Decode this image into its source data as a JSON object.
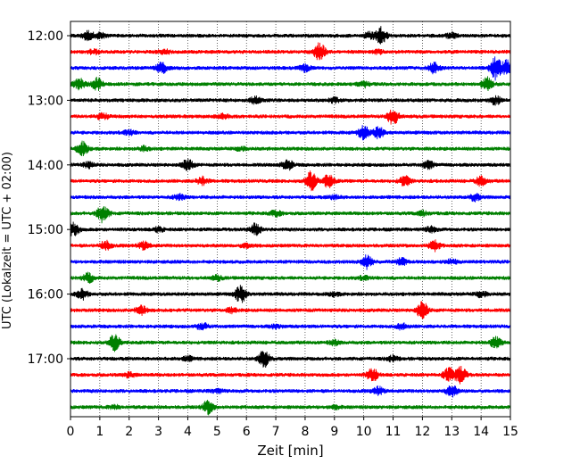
{
  "chart_data": {
    "type": "line",
    "title": "",
    "xlabel": "Zeit  [min]",
    "ylabel": "UTC (Lokalzeit = UTC + 02:00)",
    "xlim": [
      0,
      15
    ],
    "x_ticks": [
      0,
      1,
      2,
      3,
      4,
      5,
      6,
      7,
      8,
      9,
      10,
      11,
      12,
      13,
      14,
      15
    ],
    "y_tick_labels": [
      "12:00",
      "13:00",
      "14:00",
      "15:00",
      "16:00",
      "17:00"
    ],
    "grid": "vertical dotted at each minute",
    "line_colors": [
      "#000000",
      "#ff0000",
      "#0000ff",
      "#008000"
    ],
    "traces": [
      {
        "start": "12:00",
        "color": "#000000",
        "events": [
          [
            0.6,
            0.8
          ],
          [
            1.0,
            0.5
          ],
          [
            10.6,
            1.6
          ],
          [
            10.2,
            0.6
          ],
          [
            13.0,
            0.5
          ]
        ]
      },
      {
        "start": "12:15",
        "color": "#ff0000",
        "events": [
          [
            0.8,
            0.4
          ],
          [
            8.5,
            1.6
          ],
          [
            3.2,
            0.4
          ],
          [
            10.5,
            0.3
          ]
        ]
      },
      {
        "start": "12:30",
        "color": "#0000ff",
        "events": [
          [
            3.1,
            0.9
          ],
          [
            8.0,
            0.6
          ],
          [
            12.4,
            0.9
          ],
          [
            14.5,
            2.0
          ],
          [
            14.9,
            1.4
          ]
        ]
      },
      {
        "start": "12:45",
        "color": "#008000",
        "events": [
          [
            0.3,
            1.0
          ],
          [
            0.9,
            1.1
          ],
          [
            10.0,
            0.5
          ],
          [
            14.2,
            1.2
          ]
        ]
      },
      {
        "start": "13:00",
        "color": "#000000",
        "events": [
          [
            6.3,
            0.6
          ],
          [
            9.0,
            0.4
          ],
          [
            14.5,
            0.7
          ]
        ]
      },
      {
        "start": "13:15",
        "color": "#ff0000",
        "events": [
          [
            1.1,
            0.6
          ],
          [
            5.2,
            0.4
          ],
          [
            11.0,
            1.5
          ]
        ]
      },
      {
        "start": "13:30",
        "color": "#0000ff",
        "events": [
          [
            10.0,
            1.2
          ],
          [
            10.5,
            1.0
          ],
          [
            2.0,
            0.4
          ]
        ]
      },
      {
        "start": "13:45",
        "color": "#008000",
        "events": [
          [
            0.4,
            1.2
          ],
          [
            2.5,
            0.4
          ],
          [
            5.8,
            0.3
          ]
        ]
      },
      {
        "start": "14:00",
        "color": "#000000",
        "events": [
          [
            4.0,
            1.0
          ],
          [
            7.4,
            0.9
          ],
          [
            12.2,
            0.7
          ],
          [
            0.6,
            0.5
          ]
        ]
      },
      {
        "start": "14:15",
        "color": "#ff0000",
        "events": [
          [
            4.5,
            0.7
          ],
          [
            8.2,
            1.7
          ],
          [
            8.8,
            1.2
          ],
          [
            11.4,
            0.9
          ],
          [
            14.0,
            0.8
          ]
        ]
      },
      {
        "start": "14:30",
        "color": "#0000ff",
        "events": [
          [
            3.7,
            0.5
          ],
          [
            13.8,
            0.6
          ],
          [
            9.0,
            0.3
          ]
        ]
      },
      {
        "start": "14:45",
        "color": "#008000",
        "events": [
          [
            1.1,
            1.6
          ],
          [
            7.0,
            0.5
          ],
          [
            12.0,
            0.4
          ]
        ]
      },
      {
        "start": "15:00",
        "color": "#000000",
        "events": [
          [
            0.1,
            1.2
          ],
          [
            6.3,
            1.0
          ],
          [
            12.3,
            0.5
          ],
          [
            3.0,
            0.4
          ]
        ]
      },
      {
        "start": "15:15",
        "color": "#ff0000",
        "events": [
          [
            1.2,
            0.8
          ],
          [
            2.5,
            0.7
          ],
          [
            6.0,
            0.4
          ],
          [
            12.4,
            0.9
          ]
        ]
      },
      {
        "start": "15:30",
        "color": "#0000ff",
        "events": [
          [
            10.1,
            1.2
          ],
          [
            11.3,
            0.6
          ],
          [
            13.0,
            0.4
          ]
        ]
      },
      {
        "start": "15:45",
        "color": "#008000",
        "events": [
          [
            0.6,
            0.8
          ],
          [
            5.0,
            0.4
          ],
          [
            10.0,
            0.3
          ]
        ]
      },
      {
        "start": "16:00",
        "color": "#000000",
        "events": [
          [
            0.4,
            0.9
          ],
          [
            5.8,
            1.5
          ],
          [
            14.0,
            0.5
          ],
          [
            9.0,
            0.3
          ]
        ]
      },
      {
        "start": "16:15",
        "color": "#ff0000",
        "events": [
          [
            2.4,
            0.8
          ],
          [
            5.5,
            0.4
          ],
          [
            12.0,
            1.5
          ]
        ]
      },
      {
        "start": "16:30",
        "color": "#0000ff",
        "events": [
          [
            4.5,
            0.6
          ],
          [
            11.3,
            0.5
          ],
          [
            7.0,
            0.3
          ]
        ]
      },
      {
        "start": "16:45",
        "color": "#008000",
        "events": [
          [
            1.5,
            1.4
          ],
          [
            9.0,
            0.4
          ],
          [
            14.5,
            1.0
          ]
        ]
      },
      {
        "start": "17:00",
        "color": "#000000",
        "events": [
          [
            6.6,
            1.6
          ],
          [
            4.0,
            0.4
          ],
          [
            11.0,
            0.5
          ]
        ]
      },
      {
        "start": "17:15",
        "color": "#ff0000",
        "events": [
          [
            10.3,
            1.1
          ],
          [
            12.9,
            1.2
          ],
          [
            13.3,
            1.5
          ],
          [
            2.0,
            0.4
          ]
        ]
      },
      {
        "start": "17:30",
        "color": "#0000ff",
        "events": [
          [
            10.5,
            0.7
          ],
          [
            13.0,
            1.0
          ],
          [
            5.0,
            0.3
          ]
        ]
      },
      {
        "start": "17:45",
        "color": "#008000",
        "events": [
          [
            4.7,
            1.2
          ],
          [
            1.5,
            0.3
          ],
          [
            9.0,
            0.3
          ]
        ]
      }
    ]
  }
}
